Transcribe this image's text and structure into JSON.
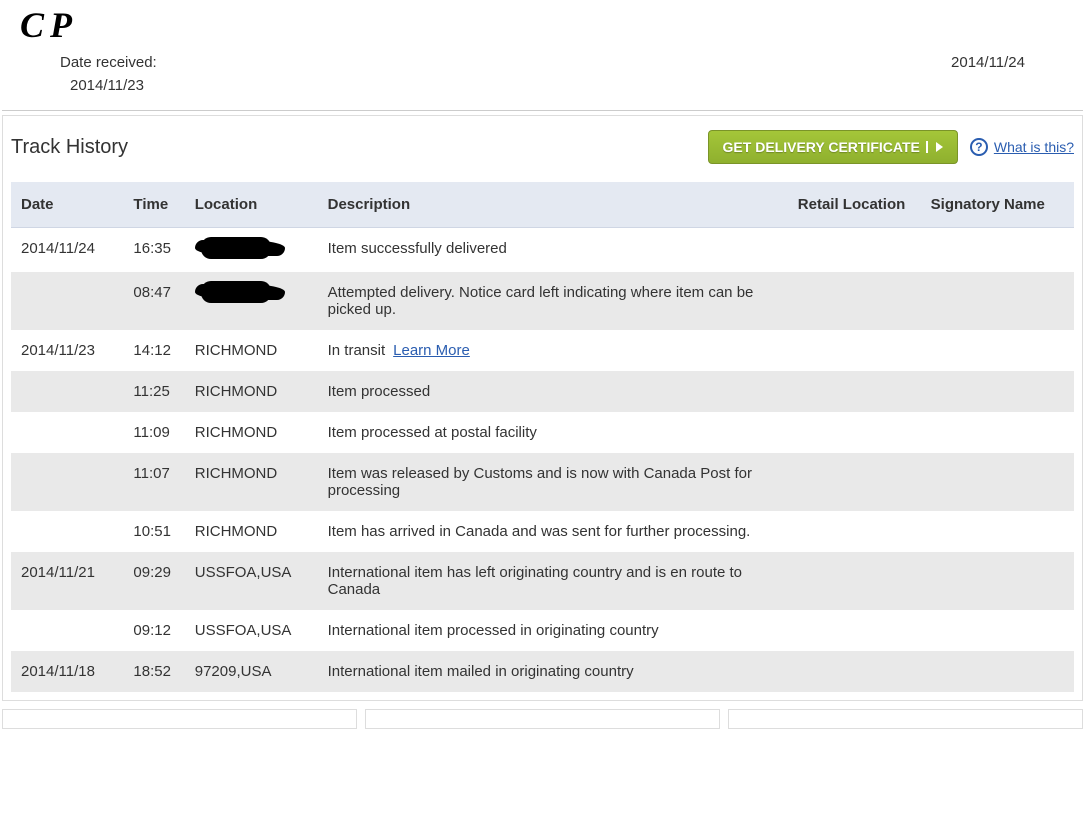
{
  "annotation": "CP",
  "header": {
    "received_label": "Date received:",
    "received_value": "2014/11/23",
    "right_date": "2014/11/24"
  },
  "section": {
    "title": "Track History",
    "cert_button": "GET DELIVERY CERTIFICATE",
    "help_link": "What is this?"
  },
  "columns": {
    "date": "Date",
    "time": "Time",
    "location": "Location",
    "description": "Description",
    "retail": "Retail Location",
    "signatory": "Signatory Name"
  },
  "rows": [
    {
      "date": "2014/11/24",
      "time": "16:35",
      "location_redacted": true,
      "description": "Item successfully delivered"
    },
    {
      "date": "",
      "time": "08:47",
      "location_redacted": true,
      "description": "Attempted delivery. Notice card left indicating where item can be picked up."
    },
    {
      "date": "2014/11/23",
      "time": "14:12",
      "location": "RICHMOND",
      "description": "In transit",
      "learn_more": "Learn More"
    },
    {
      "date": "",
      "time": "11:25",
      "location": "RICHMOND",
      "description": "Item processed"
    },
    {
      "date": "",
      "time": "11:09",
      "location": "RICHMOND",
      "description": "Item processed at postal facility"
    },
    {
      "date": "",
      "time": "11:07",
      "location": "RICHMOND",
      "description": "Item was released by Customs and is now with Canada Post for processing"
    },
    {
      "date": "",
      "time": "10:51",
      "location": "RICHMOND",
      "description": "Item has arrived in Canada and was sent for further processing."
    },
    {
      "date": "2014/11/21",
      "time": "09:29",
      "location": "USSFOA,USA",
      "description": "International item has left originating country and is en route to Canada"
    },
    {
      "date": "",
      "time": "09:12",
      "location": "USSFOA,USA",
      "description": "International item processed in originating country"
    },
    {
      "date": "2014/11/18",
      "time": "18:52",
      "location": "97209,USA",
      "description": "International item mailed in originating country"
    }
  ],
  "style": {
    "header_bg": "#e4e9f2",
    "row_alt_bg": "#e9e9e9",
    "link_color": "#2a5db0",
    "button_bg_top": "#a4c639",
    "button_bg_bottom": "#8fb02e"
  }
}
